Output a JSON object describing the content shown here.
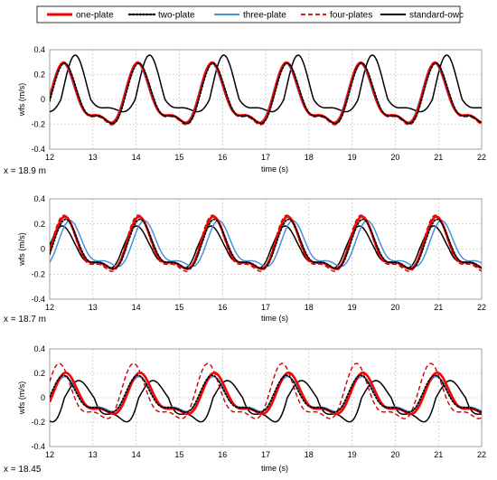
{
  "legend": [
    {
      "name": "one-plate",
      "color": "#ff0000",
      "dash": "solid",
      "width": 2.6
    },
    {
      "name": "two-plate",
      "color": "#000000",
      "dash": "dotted",
      "width": 1.8
    },
    {
      "name": "three-plate",
      "color": "#4a90d9",
      "dash": "solid",
      "width": 1.5
    },
    {
      "name": "four-plates",
      "color": "#cc0000",
      "dash": "dashed",
      "width": 1.4
    },
    {
      "name": "standard-owc",
      "color": "#000000",
      "dash": "solid",
      "width": 1.5
    }
  ],
  "chart_data": [
    {
      "type": "line",
      "position_label": "x = 18.9 m",
      "xlabel": "time (s)",
      "ylabel": "wfs (m/s)",
      "xlim": [
        12,
        22
      ],
      "ylim": [
        -0.4,
        0.4
      ],
      "xticks": [
        12,
        13,
        14,
        15,
        16,
        17,
        18,
        19,
        20,
        21,
        22
      ],
      "yticks": [
        "0.4",
        "0.2",
        "0",
        "-0.2",
        "-0.4"
      ],
      "grid": true,
      "series": [
        {
          "name": "one-plate",
          "period": 1.72,
          "phase_time": 12.35,
          "pos_amp": 0.275,
          "neg_amp": 0.285
        },
        {
          "name": "two-plate",
          "period": 1.72,
          "phase_time": 12.37,
          "pos_amp": 0.27,
          "neg_amp": 0.295
        },
        {
          "name": "three-plate",
          "period": 1.72,
          "phase_time": 12.33,
          "pos_amp": 0.27,
          "neg_amp": 0.28
        },
        {
          "name": "four-plates",
          "period": 1.72,
          "phase_time": 12.36,
          "pos_amp": 0.27,
          "neg_amp": 0.31
        },
        {
          "name": "standard-owc",
          "period": 1.72,
          "phase_time": 12.62,
          "pos_amp": 0.33,
          "neg_amp": 0.15
        }
      ]
    },
    {
      "type": "line",
      "position_label": "x = 18.7 m",
      "xlabel": "time (s)",
      "ylabel": "wfs (m/s)",
      "xlim": [
        12,
        22
      ],
      "ylim": [
        -0.4,
        0.4
      ],
      "xticks": [
        12,
        13,
        14,
        15,
        16,
        17,
        18,
        19,
        20,
        21,
        22
      ],
      "yticks": [
        "0.4",
        "0.2",
        "0",
        "-0.2",
        "-0.4"
      ],
      "grid": true,
      "series": [
        {
          "name": "one-plate",
          "period": 1.72,
          "phase_time": 12.38,
          "pos_amp": 0.24,
          "neg_amp": 0.24
        },
        {
          "name": "two-plate",
          "period": 1.72,
          "phase_time": 12.4,
          "pos_amp": 0.22,
          "neg_amp": 0.24
        },
        {
          "name": "three-plate",
          "period": 1.72,
          "phase_time": 12.5,
          "pos_amp": 0.21,
          "neg_amp": 0.21
        },
        {
          "name": "four-plates",
          "period": 1.72,
          "phase_time": 12.36,
          "pos_amp": 0.25,
          "neg_amp": 0.27
        },
        {
          "name": "standard-owc",
          "period": 1.72,
          "phase_time": 12.32,
          "pos_amp": 0.17,
          "neg_amp": 0.23
        }
      ]
    },
    {
      "type": "line",
      "position_label": "x = 18.45",
      "xlabel": "time (s)",
      "ylabel": "wfs (m/s)",
      "xlim": [
        12,
        22
      ],
      "ylim": [
        -0.4,
        0.4
      ],
      "xticks": [
        12,
        13,
        14,
        15,
        16,
        17,
        18,
        19,
        20,
        21,
        22
      ],
      "yticks": [
        "0.4",
        "0.2",
        "0",
        "-0.2",
        "-0.4"
      ],
      "grid": true,
      "series": [
        {
          "name": "one-plate",
          "period": 1.72,
          "phase_time": 12.4,
          "pos_amp": 0.19,
          "neg_amp": 0.2
        },
        {
          "name": "two-plate",
          "period": 1.72,
          "phase_time": 12.35,
          "pos_amp": 0.17,
          "neg_amp": 0.18
        },
        {
          "name": "three-plate",
          "period": 1.72,
          "phase_time": 12.38,
          "pos_amp": 0.16,
          "neg_amp": 0.17
        },
        {
          "name": "four-plates",
          "period": 1.72,
          "phase_time": 12.25,
          "pos_amp": 0.26,
          "neg_amp": 0.26
        },
        {
          "name": "standard-owc",
          "period": 1.72,
          "phase_time": 12.7,
          "pos_amp": 0.13,
          "neg_amp": 0.3
        }
      ]
    }
  ]
}
